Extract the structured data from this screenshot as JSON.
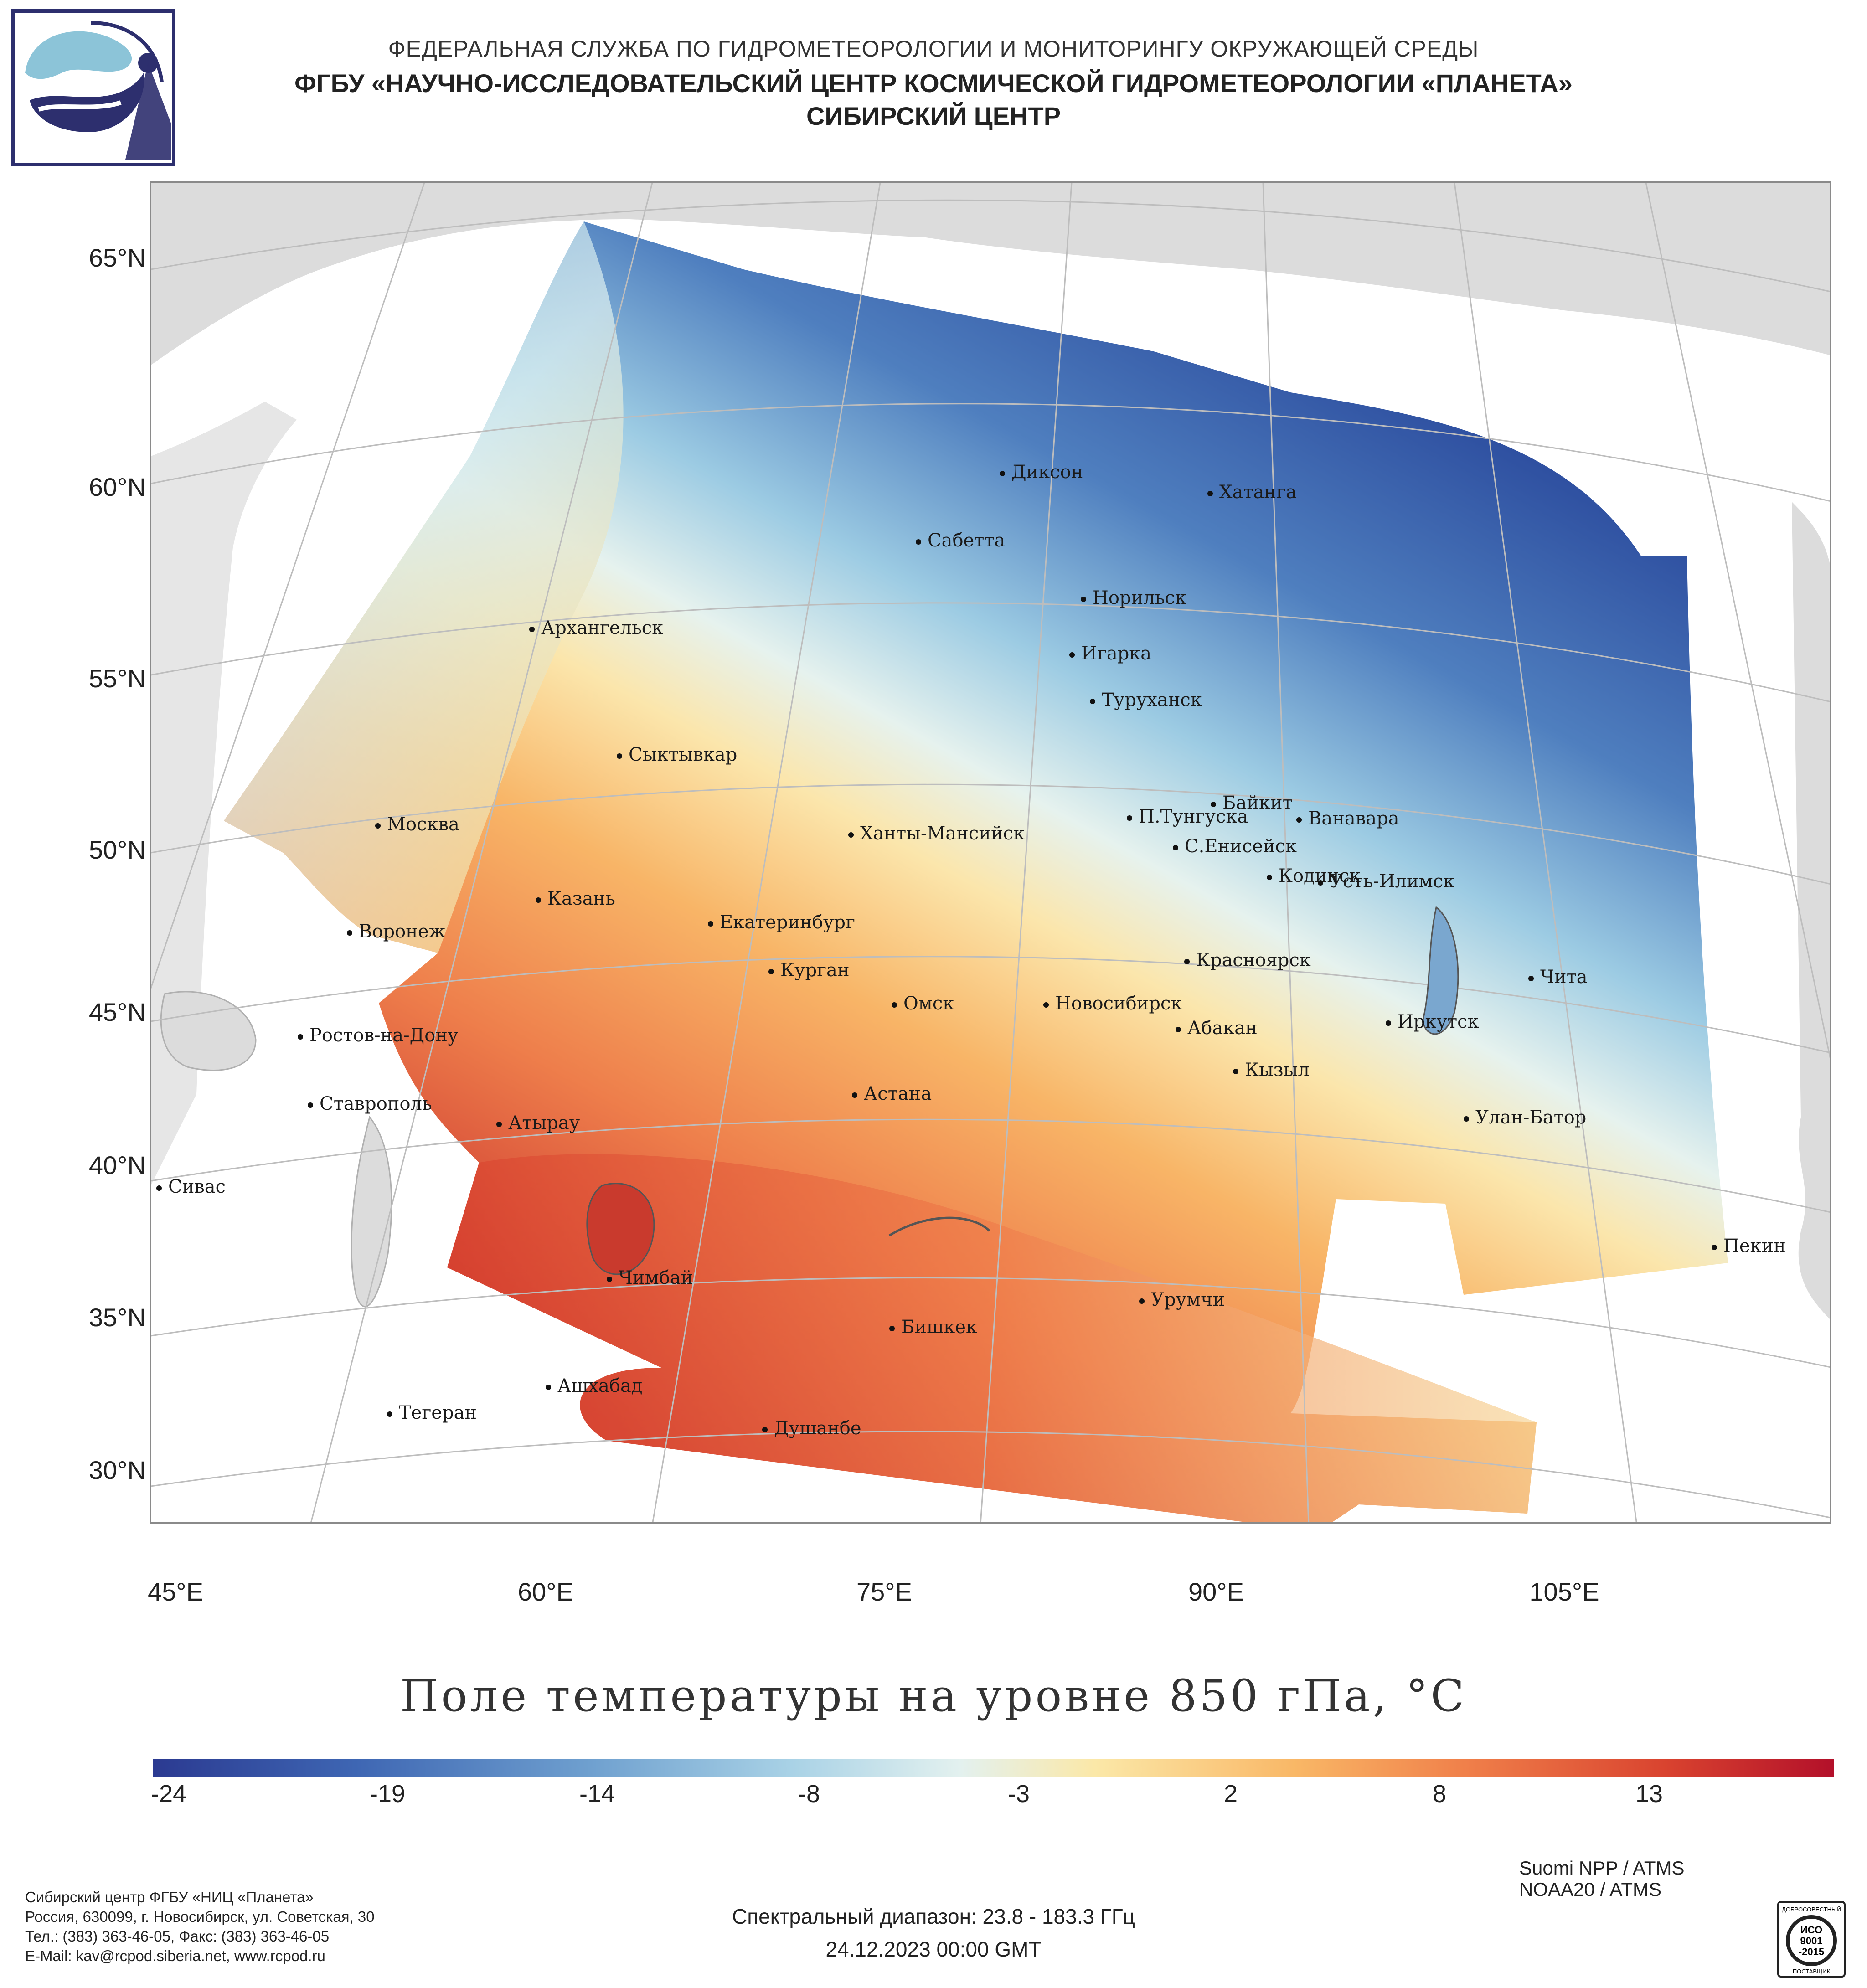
{
  "header": {
    "line1": "ФЕДЕРАЛЬНАЯ СЛУЖБА ПО ГИДРОМЕТЕОРОЛОГИИ И МОНИТОРИНГУ ОКРУЖАЮЩЕЙ СРЕДЫ",
    "line2": "ФГБУ «НАУЧНО-ИССЛЕДОВАТЕЛЬСКИЙ ЦЕНТР КОСМИЧЕСКОЙ ГИДРОМЕТЕОРОЛОГИИ «ПЛАНЕТА»",
    "line3": "СИБИРСКИЙ ЦЕНТР"
  },
  "map": {
    "lat_labels": [
      "65°N",
      "60°N",
      "55°N",
      "50°N",
      "45°N",
      "40°N",
      "35°N",
      "30°N"
    ],
    "lon_labels": [
      "45°E",
      "60°E",
      "75°E",
      "90°E",
      "105°E"
    ],
    "cities": [
      {
        "name": "Диксон"
      },
      {
        "name": "Хатанга"
      },
      {
        "name": "Сабетта"
      },
      {
        "name": "Норильск"
      },
      {
        "name": "Архангельск"
      },
      {
        "name": "Игарка"
      },
      {
        "name": "Туруханск"
      },
      {
        "name": "Сыктывкар"
      },
      {
        "name": "Байкит"
      },
      {
        "name": "Москва"
      },
      {
        "name": "П.Тунгуска"
      },
      {
        "name": "Ванавара"
      },
      {
        "name": "Ханты-Мансийск"
      },
      {
        "name": "С.Енисейск"
      },
      {
        "name": "Кодинск"
      },
      {
        "name": "Усть-Илимск"
      },
      {
        "name": "Казань"
      },
      {
        "name": "Воронеж"
      },
      {
        "name": "Екатеринбург"
      },
      {
        "name": "Красноярск"
      },
      {
        "name": "Курган"
      },
      {
        "name": "Чита"
      },
      {
        "name": "Омск"
      },
      {
        "name": "Новосибирск"
      },
      {
        "name": "Иркутск"
      },
      {
        "name": "Абакан"
      },
      {
        "name": "Ростов-на-Дону"
      },
      {
        "name": "Кызыл"
      },
      {
        "name": "Ставрополь"
      },
      {
        "name": "Астана"
      },
      {
        "name": "Улан-Батор"
      },
      {
        "name": "Атырау"
      },
      {
        "name": "Сивас"
      },
      {
        "name": "Пекин"
      },
      {
        "name": "Чимбай"
      },
      {
        "name": "Урумчи"
      },
      {
        "name": "Бишкек"
      },
      {
        "name": "Ашхабад"
      },
      {
        "name": "Тегеран"
      },
      {
        "name": "Душанбе"
      }
    ]
  },
  "title": "Поле температуры на уровне 850 гПа, °С",
  "colorbar": {
    "tick_labels": [
      "-24",
      "-19",
      "-14",
      "-8",
      "-3",
      "2",
      "8",
      "13"
    ],
    "colors": [
      "#2b3a91",
      "#3e66b3",
      "#6fa0cf",
      "#a9d2e6",
      "#e3f1ef",
      "#fbe8a8",
      "#f9b766",
      "#f0804a",
      "#d9432f",
      "#b3102a"
    ]
  },
  "footer": {
    "org_lines": [
      "Сибирский центр ФГБУ «НИЦ «Планета»",
      "Россия, 630099, г. Новосибирск, ул. Советская, 30",
      "Тел.: (383) 363-46-05, Факс: (383) 363-46-05",
      "E-Mail: kav@rcpod.siberia.net, www.rcpod.ru"
    ],
    "sat1": "Suomi NPP / ATMS",
    "sat2": "NOAA20 / ATMS",
    "spectral": "Спектральный диапазон: 23.8 - 183.3 ГГц",
    "datetime": "24.12.2023 00:00 GMT",
    "iso_top": "ДОБРОСОВЕСТНЫЙ",
    "iso_mid1": "ИСО",
    "iso_mid2": "9001",
    "iso_mid3": "-2015",
    "iso_bottom": "ПОСТАВЩИК"
  }
}
